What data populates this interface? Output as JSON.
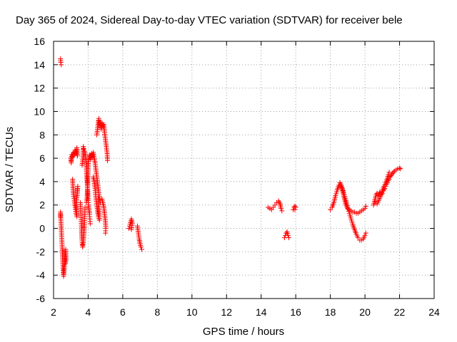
{
  "chart_data": {
    "type": "scatter",
    "title": "Day 365 of 2024, Sidereal Day-to-day VTEC variation (SDTVAR) for receiver bele",
    "xlabel": "GPS time / hours",
    "ylabel": "SDTVAR / TECUs",
    "xlim": [
      2,
      24
    ],
    "ylim": [
      -6,
      16
    ],
    "xticks": [
      2,
      4,
      6,
      8,
      10,
      12,
      14,
      16,
      18,
      20,
      22,
      24
    ],
    "yticks": [
      -6,
      -4,
      -2,
      0,
      2,
      4,
      6,
      8,
      10,
      12,
      14,
      16
    ],
    "grid": true,
    "marker": "+",
    "color": "#ff0000",
    "series": [
      {
        "name": "SDTVAR",
        "segments": [
          [
            [
              2.4,
              14.5
            ],
            [
              2.42,
              14.2
            ],
            [
              2.44,
              14.0
            ]
          ],
          [
            [
              2.4,
              1.0
            ],
            [
              2.4,
              1.4
            ],
            [
              2.42,
              0.8
            ],
            [
              2.44,
              0.2
            ],
            [
              2.46,
              -0.4
            ],
            [
              2.48,
              -1.0
            ],
            [
              2.5,
              -1.6
            ],
            [
              2.52,
              -2.3
            ],
            [
              2.54,
              -3.0
            ],
            [
              2.56,
              -3.6
            ],
            [
              2.58,
              -4.1
            ],
            [
              2.62,
              -3.4
            ],
            [
              2.66,
              -2.4
            ],
            [
              2.7,
              -1.8
            ],
            [
              2.72,
              -2.6
            ],
            [
              2.68,
              -3.0
            ]
          ],
          [
            [
              3.0,
              6.0
            ],
            [
              3.02,
              5.6
            ],
            [
              3.05,
              6.3
            ],
            [
              3.1,
              6.1
            ],
            [
              3.15,
              6.5
            ],
            [
              3.2,
              6.3
            ],
            [
              3.25,
              6.7
            ],
            [
              3.3,
              6.4
            ],
            [
              3.35,
              6.9
            ],
            [
              3.38,
              6.2
            ]
          ],
          [
            [
              3.1,
              4.2
            ],
            [
              3.15,
              2.9
            ],
            [
              3.2,
              2.4
            ],
            [
              3.25,
              1.8
            ],
            [
              3.3,
              1.3
            ],
            [
              3.35,
              1.0
            ],
            [
              3.32,
              2.2
            ],
            [
              3.38,
              3.4
            ],
            [
              3.4,
              3.6
            ],
            [
              3.36,
              2.8
            ]
          ],
          [
            [
              3.55,
              2.2
            ],
            [
              3.58,
              1.4
            ],
            [
              3.6,
              0.6
            ],
            [
              3.62,
              -0.2
            ],
            [
              3.64,
              -0.9
            ],
            [
              3.66,
              -1.4
            ],
            [
              3.68,
              -1.6
            ],
            [
              3.72,
              -1.2
            ],
            [
              3.75,
              -0.5
            ],
            [
              3.78,
              0.2
            ],
            [
              3.8,
              1.0
            ],
            [
              3.82,
              1.8
            ]
          ],
          [
            [
              3.65,
              5.4
            ],
            [
              3.7,
              6.0
            ],
            [
              3.72,
              7.0
            ],
            [
              3.75,
              6.8
            ],
            [
              3.8,
              6.6
            ],
            [
              3.85,
              6.2
            ],
            [
              3.88,
              5.6
            ],
            [
              3.9,
              5.0
            ],
            [
              3.92,
              4.4
            ],
            [
              3.95,
              3.8
            ],
            [
              3.98,
              3.0
            ],
            [
              4.0,
              2.4
            ],
            [
              4.02,
              2.0
            ],
            [
              4.05,
              1.6
            ],
            [
              4.08,
              1.2
            ],
            [
              4.1,
              0.8
            ],
            [
              4.12,
              0.4
            ]
          ],
          [
            [
              3.9,
              2.2
            ],
            [
              3.95,
              2.8
            ],
            [
              4.0,
              5.4
            ],
            [
              4.05,
              6.0
            ],
            [
              4.1,
              6.3
            ],
            [
              4.15,
              5.9
            ],
            [
              4.2,
              6.4
            ],
            [
              4.25,
              6.1
            ],
            [
              4.3,
              6.5
            ],
            [
              4.35,
              6.0
            ],
            [
              4.4,
              5.6
            ],
            [
              4.45,
              5.0
            ],
            [
              4.5,
              4.4
            ],
            [
              4.55,
              3.8
            ],
            [
              4.6,
              3.2
            ],
            [
              4.65,
              2.6
            ],
            [
              4.7,
              2.2
            ]
          ],
          [
            [
              4.3,
              4.4
            ],
            [
              4.35,
              4.0
            ],
            [
              4.4,
              3.4
            ],
            [
              4.45,
              2.6
            ],
            [
              4.5,
              2.0
            ],
            [
              4.55,
              1.4
            ],
            [
              4.6,
              1.0
            ],
            [
              4.65,
              0.7
            ],
            [
              4.62,
              1.6
            ],
            [
              4.58,
              2.6
            ]
          ],
          [
            [
              4.5,
              8.0
            ],
            [
              4.55,
              8.6
            ],
            [
              4.6,
              9.2
            ],
            [
              4.62,
              9.4
            ],
            [
              4.65,
              8.8
            ],
            [
              4.7,
              9.1
            ],
            [
              4.75,
              8.5
            ],
            [
              4.8,
              9.0
            ],
            [
              4.85,
              8.7
            ],
            [
              4.9,
              8.9
            ],
            [
              4.95,
              8.2
            ],
            [
              5.0,
              7.6
            ],
            [
              5.05,
              7.0
            ],
            [
              5.1,
              6.4
            ],
            [
              5.12,
              5.8
            ]
          ],
          [
            [
              4.8,
              2.5
            ],
            [
              4.85,
              2.2
            ],
            [
              4.9,
              1.9
            ],
            [
              4.95,
              1.2
            ],
            [
              5.0,
              0.6
            ],
            [
              5.02,
              0.0
            ],
            [
              5.0,
              -0.4
            ]
          ],
          [
            [
              6.35,
              0.0
            ],
            [
              6.4,
              0.2
            ],
            [
              6.45,
              0.5
            ],
            [
              6.5,
              0.8
            ],
            [
              6.55,
              0.4
            ],
            [
              6.5,
              -0.1
            ]
          ],
          [
            [
              6.85,
              0.2
            ],
            [
              6.9,
              -0.4
            ],
            [
              6.95,
              -0.9
            ],
            [
              7.0,
              -1.3
            ],
            [
              7.05,
              -1.6
            ],
            [
              7.1,
              -1.8
            ]
          ],
          [
            [
              14.4,
              1.8
            ],
            [
              14.5,
              1.7
            ],
            [
              14.6,
              1.6
            ],
            [
              14.7,
              1.8
            ],
            [
              14.8,
              2.0
            ],
            [
              14.9,
              2.2
            ],
            [
              15.0,
              2.35
            ],
            [
              15.1,
              2.1
            ],
            [
              15.15,
              1.7
            ],
            [
              15.2,
              1.5
            ]
          ],
          [
            [
              15.35,
              -0.8
            ],
            [
              15.4,
              -0.6
            ],
            [
              15.45,
              -0.4
            ],
            [
              15.5,
              -0.3
            ],
            [
              15.55,
              -0.6
            ],
            [
              15.6,
              -0.8
            ]
          ],
          [
            [
              15.85,
              1.6
            ],
            [
              15.9,
              1.8
            ],
            [
              15.95,
              1.9
            ],
            [
              16.0,
              1.8
            ],
            [
              15.95,
              1.6
            ]
          ],
          [
            [
              18.0,
              1.6
            ],
            [
              18.1,
              1.8
            ],
            [
              18.2,
              2.2
            ],
            [
              18.3,
              2.8
            ],
            [
              18.4,
              3.3
            ],
            [
              18.5,
              3.7
            ],
            [
              18.55,
              3.9
            ],
            [
              18.6,
              3.8
            ],
            [
              18.7,
              3.4
            ],
            [
              18.8,
              2.9
            ],
            [
              18.9,
              2.4
            ],
            [
              19.0,
              1.8
            ],
            [
              19.1,
              1.3
            ],
            [
              19.2,
              0.8
            ],
            [
              19.3,
              0.3
            ],
            [
              19.4,
              -0.1
            ],
            [
              19.5,
              -0.5
            ],
            [
              19.6,
              -0.8
            ],
            [
              19.7,
              -1.0
            ],
            [
              19.8,
              -1.0
            ],
            [
              19.9,
              -0.9
            ],
            [
              20.0,
              -0.6
            ],
            [
              20.05,
              -0.4
            ]
          ],
          [
            [
              18.6,
              3.6
            ],
            [
              18.7,
              3.3
            ],
            [
              18.8,
              2.6
            ],
            [
              18.9,
              2.0
            ],
            [
              19.0,
              1.7
            ],
            [
              19.1,
              1.6
            ],
            [
              19.2,
              1.5
            ],
            [
              19.3,
              1.4
            ],
            [
              19.4,
              1.4
            ],
            [
              19.5,
              1.3
            ],
            [
              19.6,
              1.3
            ],
            [
              19.7,
              1.4
            ],
            [
              19.8,
              1.5
            ],
            [
              19.9,
              1.6
            ],
            [
              20.0,
              1.7
            ],
            [
              20.05,
              1.9
            ]
          ],
          [
            [
              20.5,
              2.0
            ],
            [
              20.55,
              2.3
            ],
            [
              20.6,
              2.6
            ],
            [
              20.65,
              2.9
            ],
            [
              20.7,
              3.0
            ],
            [
              20.75,
              2.8
            ],
            [
              20.8,
              2.9
            ],
            [
              20.85,
              3.1
            ],
            [
              20.9,
              3.0
            ],
            [
              20.95,
              2.9
            ],
            [
              21.0,
              3.0
            ],
            [
              21.05,
              3.2
            ],
            [
              21.1,
              3.3
            ],
            [
              21.15,
              3.4
            ],
            [
              21.2,
              3.6
            ],
            [
              21.25,
              3.8
            ],
            [
              21.3,
              3.9
            ],
            [
              21.35,
              4.1
            ],
            [
              21.4,
              4.2
            ],
            [
              21.45,
              4.4
            ],
            [
              21.5,
              4.5
            ],
            [
              21.55,
              4.6
            ],
            [
              21.6,
              4.7
            ],
            [
              21.65,
              4.8
            ],
            [
              21.7,
              4.9
            ],
            [
              21.8,
              5.0
            ],
            [
              21.9,
              5.1
            ],
            [
              22.0,
              5.15
            ],
            [
              22.05,
              5.1
            ]
          ],
          [
            [
              20.6,
              2.3
            ],
            [
              20.7,
              2.1
            ],
            [
              20.8,
              2.4
            ],
            [
              20.9,
              2.7
            ],
            [
              21.0,
              3.2
            ],
            [
              21.1,
              3.6
            ],
            [
              21.2,
              3.9
            ],
            [
              21.3,
              4.3
            ],
            [
              21.35,
              4.6
            ],
            [
              21.4,
              4.8
            ]
          ]
        ]
      }
    ]
  }
}
